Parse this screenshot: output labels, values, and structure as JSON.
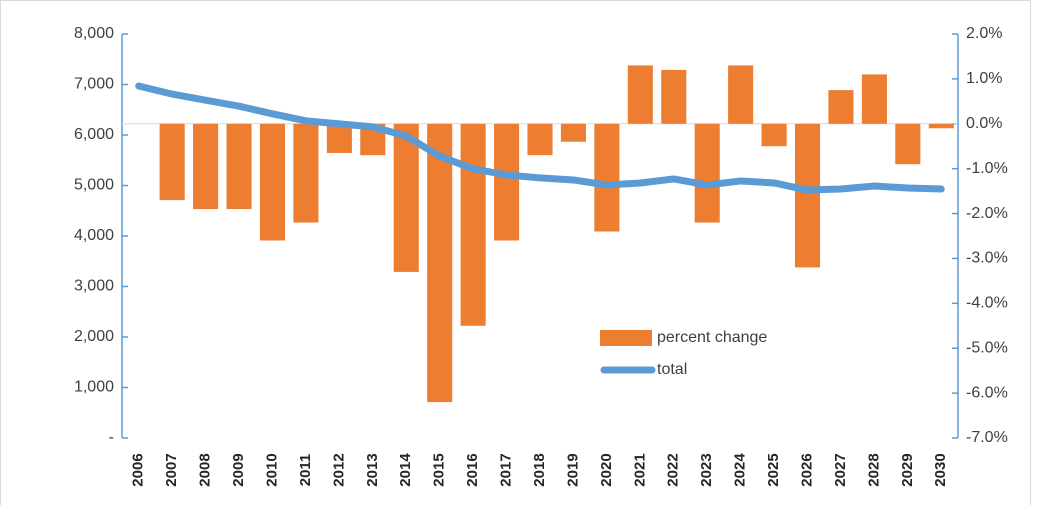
{
  "chart_data": {
    "type": "combo",
    "categories": [
      "2006",
      "2007",
      "2008",
      "2009",
      "2010",
      "2011",
      "2012",
      "2013",
      "2014",
      "2015",
      "2016",
      "2017",
      "2018",
      "2019",
      "2020",
      "2021",
      "2022",
      "2023",
      "2024",
      "2025",
      "2026",
      "2027",
      "2028",
      "2029",
      "2030"
    ],
    "series": [
      {
        "name": "percent change",
        "type": "bar",
        "axis": "y2",
        "color": "#ed7d31",
        "values": [
          null,
          -1.7,
          -1.9,
          -1.9,
          -2.6,
          -2.2,
          -0.65,
          -0.7,
          -3.3,
          -6.2,
          -4.5,
          -2.6,
          -0.7,
          -0.4,
          -2.4,
          1.3,
          1.2,
          -2.2,
          1.3,
          -0.5,
          -3.2,
          0.75,
          1.1,
          -0.9,
          -0.1
        ]
      },
      {
        "name": "total",
        "type": "line",
        "axis": "y",
        "color": "#5b9bd5",
        "values": [
          6970,
          6810,
          6690,
          6570,
          6420,
          6280,
          6220,
          6160,
          5980,
          5580,
          5330,
          5210,
          5150,
          5110,
          5010,
          5050,
          5130,
          5010,
          5090,
          5050,
          4910,
          4930,
          4990,
          4950,
          4930
        ]
      }
    ],
    "ylim": [
      0,
      8000
    ],
    "yticks": [
      {
        "value": 0,
        "label": "-"
      },
      {
        "value": 1000,
        "label": "1,000"
      },
      {
        "value": 2000,
        "label": "2,000"
      },
      {
        "value": 3000,
        "label": "3,000"
      },
      {
        "value": 4000,
        "label": "4,000"
      },
      {
        "value": 5000,
        "label": "5,000"
      },
      {
        "value": 6000,
        "label": "6,000"
      },
      {
        "value": 7000,
        "label": "7,000"
      },
      {
        "value": 8000,
        "label": "8,000"
      }
    ],
    "y2lim": [
      -7,
      2
    ],
    "y2ticks": [
      {
        "value": -7,
        "label": "-7.0%"
      },
      {
        "value": -6,
        "label": "-6.0%"
      },
      {
        "value": -5,
        "label": "-5.0%"
      },
      {
        "value": -4,
        "label": "-4.0%"
      },
      {
        "value": -3,
        "label": "-3.0%"
      },
      {
        "value": -2,
        "label": "-2.0%"
      },
      {
        "value": -1,
        "label": "-1.0%"
      },
      {
        "value": 0,
        "label": "0.0%"
      },
      {
        "value": 1,
        "label": "1.0%"
      },
      {
        "value": 2,
        "label": "2.0%"
      }
    ]
  }
}
